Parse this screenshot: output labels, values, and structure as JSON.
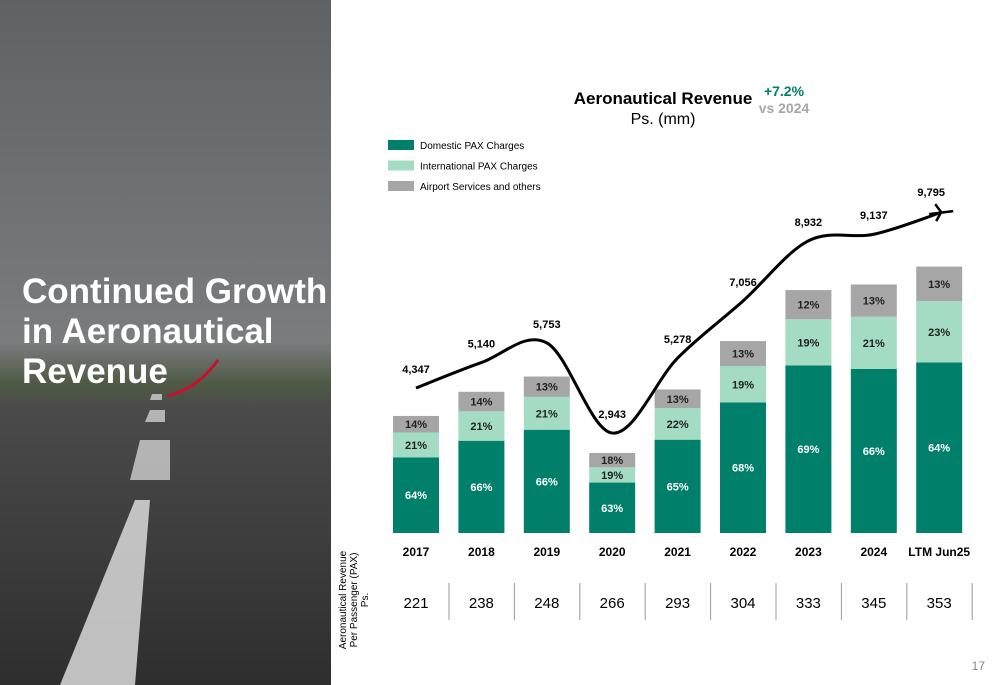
{
  "slide": {
    "title_lines": [
      "Continued Growth",
      "in Aeronautical",
      "Revenue"
    ],
    "page_number": "17"
  },
  "chart_data": {
    "type": "bar",
    "stacked": true,
    "title": "Aeronautical Revenue",
    "subtitle": "Ps. (mm)",
    "growth": "+7.2%",
    "growth_note": "vs 2024",
    "categories": [
      "2017",
      "2018",
      "2019",
      "2020",
      "2021",
      "2022",
      "2023",
      "2024",
      "LTM Jun25"
    ],
    "series": [
      {
        "name": "Domestic PAX Charges",
        "color": "#00806a",
        "values": [
          64,
          66,
          66,
          63,
          65,
          68,
          69,
          66,
          64
        ],
        "value_labels": [
          "64%",
          "66%",
          "66%",
          "63%",
          "65%",
          "68%",
          "69%",
          "66%",
          "64%"
        ]
      },
      {
        "name": "International PAX Charges",
        "color": "#a3dcc3",
        "values": [
          21,
          21,
          21,
          19,
          22,
          19,
          19,
          21,
          23
        ],
        "value_labels": [
          "21%",
          "21%",
          "21%",
          "19%",
          "22%",
          "19%",
          "19%",
          "21%",
          "23%"
        ]
      },
      {
        "name": "Airport Services and others",
        "color": "#a6a6a6",
        "values": [
          14,
          14,
          13,
          18,
          13,
          13,
          12,
          13,
          13
        ],
        "value_labels": [
          "14%",
          "14%",
          "13%",
          "18%",
          "13%",
          "13%",
          "12%",
          "13%",
          "13%"
        ]
      }
    ],
    "totals": {
      "type": "line",
      "color": "#000000",
      "values": [
        4347,
        5140,
        5753,
        2943,
        5278,
        7056,
        8932,
        9137,
        9795
      ],
      "value_labels": [
        "4,347",
        "5,140",
        "5,753",
        "2,943",
        "5,278",
        "7,056",
        "8,932",
        "9,137",
        "9,795"
      ]
    },
    "per_passenger": {
      "label_lines": [
        "Aeronautical Revenue",
        "Per Passenger (PAX)",
        "Ps."
      ],
      "values": [
        221,
        238,
        248,
        266,
        293,
        304,
        333,
        345,
        353
      ]
    }
  }
}
